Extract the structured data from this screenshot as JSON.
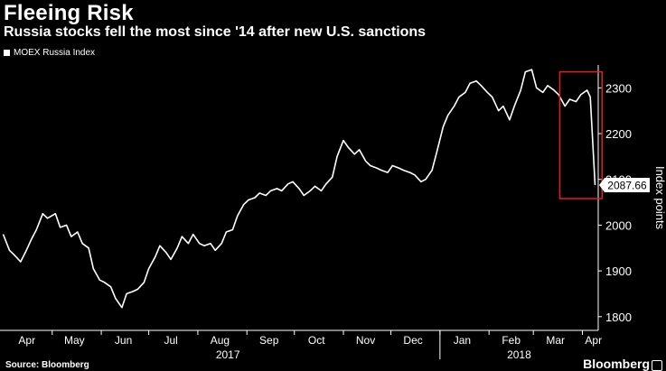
{
  "header": {
    "title": "Fleeing Risk",
    "subtitle": "Russia stocks fell the most since '14 after new U.S. sanctions"
  },
  "legend": {
    "label": "MOEX Russia Index"
  },
  "footer": {
    "source": "Source: Bloomberg",
    "brand": "Bloomberg"
  },
  "colors": {
    "background": "#000000",
    "line": "#ffffff",
    "highlight_box": "#e31e24",
    "text": "#ffffff"
  },
  "chart_data": {
    "type": "line",
    "title": "Fleeing Risk",
    "subtitle": "Russia stocks fell the most since '14 after new U.S. sanctions",
    "ylabel": "Index points",
    "xlabel": "",
    "ylim": [
      1770,
      2350
    ],
    "y_ticks": [
      1800,
      1900,
      2000,
      2100,
      2200,
      2300
    ],
    "x_ticks": [
      "Apr",
      "May",
      "Jun",
      "Jul",
      "Aug",
      "Sep",
      "Oct",
      "Nov",
      "Dec",
      "Jan",
      "Feb",
      "Mar",
      "Apr"
    ],
    "year_labels": [
      "2017",
      "2018"
    ],
    "grid": false,
    "legend_position": "top-left",
    "last_value_label": "2087.66",
    "highlight": {
      "from": "2018-03-20",
      "to": "2018-04-10",
      "color": "#e31e24"
    },
    "series": [
      {
        "name": "MOEX Russia Index",
        "x": [
          "2017-03-31",
          "2017-04-04",
          "2017-04-07",
          "2017-04-11",
          "2017-04-14",
          "2017-04-18",
          "2017-04-21",
          "2017-04-25",
          "2017-04-28",
          "2017-05-03",
          "2017-05-06",
          "2017-05-10",
          "2017-05-13",
          "2017-05-17",
          "2017-05-20",
          "2017-05-24",
          "2017-05-27",
          "2017-05-31",
          "2017-06-03",
          "2017-06-07",
          "2017-06-10",
          "2017-06-14",
          "2017-06-17",
          "2017-06-21",
          "2017-06-24",
          "2017-06-28",
          "2017-07-01",
          "2017-07-05",
          "2017-07-08",
          "2017-07-12",
          "2017-07-15",
          "2017-07-19",
          "2017-07-22",
          "2017-07-26",
          "2017-07-29",
          "2017-08-02",
          "2017-08-05",
          "2017-08-09",
          "2017-08-12",
          "2017-08-16",
          "2017-08-19",
          "2017-08-23",
          "2017-08-26",
          "2017-08-30",
          "2017-09-02",
          "2017-09-06",
          "2017-09-09",
          "2017-09-13",
          "2017-09-16",
          "2017-09-20",
          "2017-09-23",
          "2017-09-27",
          "2017-09-30",
          "2017-10-04",
          "2017-10-07",
          "2017-10-11",
          "2017-10-14",
          "2017-10-18",
          "2017-10-21",
          "2017-10-25",
          "2017-10-28",
          "2017-11-01",
          "2017-11-04",
          "2017-11-08",
          "2017-11-11",
          "2017-11-15",
          "2017-11-18",
          "2017-11-22",
          "2017-11-25",
          "2017-11-29",
          "2017-12-02",
          "2017-12-06",
          "2017-12-09",
          "2017-12-13",
          "2017-12-16",
          "2017-12-20",
          "2017-12-23",
          "2017-12-27",
          "2017-12-30",
          "2018-01-03",
          "2018-01-06",
          "2018-01-10",
          "2018-01-13",
          "2018-01-17",
          "2018-01-20",
          "2018-01-24",
          "2018-01-27",
          "2018-01-31",
          "2018-02-03",
          "2018-02-07",
          "2018-02-10",
          "2018-02-14",
          "2018-02-17",
          "2018-02-21",
          "2018-02-24",
          "2018-02-28",
          "2018-03-03",
          "2018-03-07",
          "2018-03-10",
          "2018-03-14",
          "2018-03-17",
          "2018-03-21",
          "2018-03-24",
          "2018-03-28",
          "2018-03-31",
          "2018-04-04",
          "2018-04-06",
          "2018-04-09"
        ],
        "values": [
          1980,
          1945,
          1935,
          1920,
          1940,
          1970,
          1990,
          2025,
          2015,
          2025,
          1995,
          2000,
          1975,
          1985,
          1960,
          1950,
          1905,
          1880,
          1875,
          1865,
          1840,
          1820,
          1850,
          1855,
          1860,
          1875,
          1905,
          1930,
          1955,
          1940,
          1925,
          1950,
          1975,
          1960,
          1980,
          1960,
          1955,
          1960,
          1945,
          1960,
          1985,
          1990,
          2020,
          2045,
          2055,
          2060,
          2070,
          2065,
          2075,
          2080,
          2075,
          2090,
          2095,
          2080,
          2065,
          2075,
          2085,
          2075,
          2090,
          2105,
          2150,
          2185,
          2170,
          2155,
          2165,
          2140,
          2130,
          2125,
          2120,
          2115,
          2130,
          2125,
          2120,
          2115,
          2110,
          2095,
          2100,
          2120,
          2160,
          2215,
          2240,
          2260,
          2280,
          2290,
          2310,
          2315,
          2305,
          2290,
          2280,
          2250,
          2260,
          2230,
          2260,
          2295,
          2335,
          2340,
          2300,
          2290,
          2305,
          2295,
          2285,
          2260,
          2275,
          2270,
          2285,
          2295,
          2280,
          2087.66
        ]
      }
    ]
  }
}
